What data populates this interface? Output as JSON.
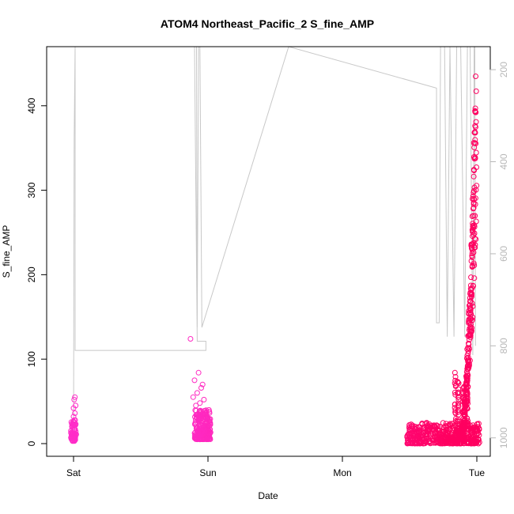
{
  "chart_data": {
    "type": "scatter",
    "title": "ATOM4 Northeast_Pacific_2 S_fine_AMP",
    "xlabel": "Date",
    "ylabel": "S_fine_AMP",
    "x_categories": [
      "Sat",
      "Sun",
      "Mon",
      "Tue"
    ],
    "x_range_days": [
      -0.2,
      3.1
    ],
    "ylim": [
      -15,
      470
    ],
    "y_ticks": [
      0,
      100,
      200,
      300,
      400
    ],
    "y2_ticks": [
      200,
      400,
      600,
      800,
      1000
    ],
    "y2_range": [
      150,
      1040
    ],
    "y2_reversed": true,
    "grid": false,
    "colors": {
      "axis": "#000000",
      "depth_line": "#c8c8c8",
      "y2_ticks": "#b8b8b8",
      "points_low": "#ff2cc8",
      "points_high": "#ff0060"
    },
    "series": [
      {
        "marker": "circle-open",
        "clusters": [
          {
            "x_center_days": 0.0,
            "x_spread": 0.02,
            "y_min": 3,
            "y_max": 28,
            "n": 70,
            "extra": [
              [
                0.01,
                55
              ],
              [
                0.005,
                52
              ],
              [
                0.015,
                45
              ],
              [
                0.0,
                42
              ],
              [
                0.01,
                36
              ],
              [
                0.0,
                32
              ]
            ]
          },
          {
            "x_center_days": 0.96,
            "x_spread": 0.06,
            "y_min": 5,
            "y_max": 40,
            "n": 220,
            "extra": [
              [
                0.87,
                124
              ],
              [
                0.93,
                84
              ],
              [
                0.9,
                75
              ],
              [
                0.96,
                70
              ],
              [
                0.95,
                66
              ],
              [
                0.92,
                60
              ],
              [
                0.89,
                55
              ],
              [
                0.97,
                52
              ],
              [
                0.94,
                48
              ],
              [
                0.91,
                45
              ]
            ]
          },
          {
            "x_center_days": 2.75,
            "x_spread": 0.27,
            "y_min": 0,
            "y_max": 25,
            "n": 500,
            "extra": []
          }
        ],
        "rising_tail": {
          "x_start_days": 2.88,
          "x_end_days": 2.995,
          "y_start": 10,
          "y_end": 450,
          "n": 320
        },
        "secondary_spikes": [
          {
            "x_days": 2.84,
            "y_max": 90
          },
          {
            "x_days": 2.86,
            "y_max": 75
          },
          {
            "x_days": 2.9,
            "y_max": 68
          },
          {
            "x_days": 2.93,
            "y_max": 60
          }
        ]
      }
    ],
    "depth_line": [
      [
        0.0,
        1000
      ],
      [
        0.005,
        350
      ],
      [
        0.012,
        150
      ],
      [
        0.012,
        810
      ],
      [
        0.985,
        810
      ],
      [
        0.985,
        790
      ],
      [
        0.98,
        790
      ],
      [
        0.92,
        790
      ],
      [
        0.9,
        150
      ],
      [
        0.915,
        150
      ],
      [
        0.92,
        760
      ],
      [
        0.93,
        150
      ],
      [
        0.94,
        150
      ],
      [
        0.955,
        760
      ],
      [
        1.6,
        150
      ],
      [
        2.7,
        240
      ],
      [
        2.7,
        750
      ],
      [
        2.72,
        750
      ],
      [
        2.73,
        150
      ],
      [
        2.76,
        150
      ],
      [
        2.78,
        780
      ],
      [
        2.8,
        150
      ],
      [
        2.83,
        780
      ],
      [
        2.85,
        150
      ],
      [
        2.88,
        150
      ],
      [
        2.91,
        780
      ],
      [
        2.93,
        150
      ],
      [
        2.95,
        150
      ],
      [
        2.97,
        820
      ],
      [
        2.98,
        150
      ],
      [
        2.985,
        150
      ],
      [
        2.99,
        800
      ]
    ]
  }
}
